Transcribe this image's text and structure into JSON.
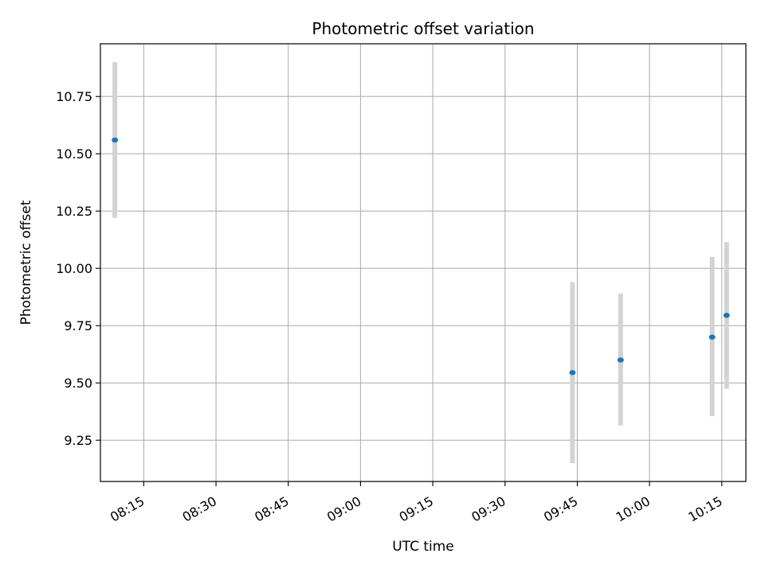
{
  "chart_data": {
    "type": "scatter",
    "title": "Photometric offset variation",
    "xlabel": "UTC time",
    "ylabel": "Photometric offset",
    "grid": true,
    "x_axis": {
      "type": "time",
      "range": [
        "08:06",
        "10:20"
      ],
      "tick_values": [
        "08:15",
        "08:30",
        "08:45",
        "09:00",
        "09:15",
        "09:30",
        "09:45",
        "10:00",
        "10:15"
      ],
      "tick_labels": [
        "08:15",
        "08:30",
        "08:45",
        "09:00",
        "09:15",
        "09:30",
        "09:45",
        "10:00",
        "10:15"
      ],
      "tick_label_rotation": 30
    },
    "y_axis": {
      "range": [
        9.07,
        10.98
      ],
      "ticks": [
        9.25,
        9.5,
        9.75,
        10.0,
        10.25,
        10.5,
        10.75
      ],
      "tick_labels": [
        "9.25",
        "9.50",
        "9.75",
        "10.00",
        "10.25",
        "10.50",
        "10.75"
      ]
    },
    "point_color": "#1f77b4",
    "errorbar_color": "#d3d3d3",
    "points": [
      {
        "x": "08:09",
        "y": 10.56,
        "y_low": 10.22,
        "y_high": 10.9
      },
      {
        "x": "09:44",
        "y": 9.545,
        "y_low": 9.15,
        "y_high": 9.94
      },
      {
        "x": "09:54",
        "y": 9.6,
        "y_low": 9.315,
        "y_high": 9.89
      },
      {
        "x": "10:13",
        "y": 9.7,
        "y_low": 9.355,
        "y_high": 10.05
      },
      {
        "x": "10:16",
        "y": 9.795,
        "y_low": 9.475,
        "y_high": 10.115
      }
    ]
  }
}
